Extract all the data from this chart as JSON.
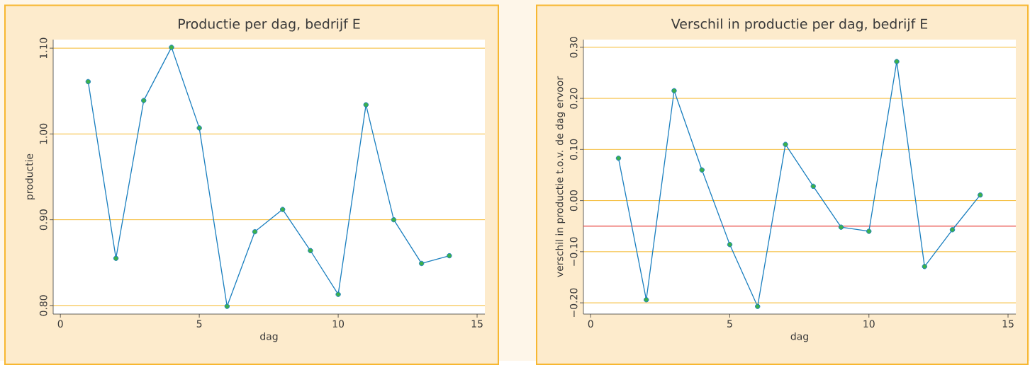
{
  "chart_data": [
    {
      "type": "line",
      "title": "Productie per dag, bedrijf E",
      "xlabel": "dag",
      "ylabel": "productie",
      "x": [
        1,
        2,
        3,
        4,
        5,
        6,
        7,
        8,
        9,
        10,
        11,
        12,
        13,
        14
      ],
      "series": [
        {
          "color": "#1a7fbf",
          "values": [
            1.061,
            0.855,
            1.039,
            1.101,
            1.007,
            0.799,
            0.886,
            0.912,
            0.864,
            0.813,
            1.034,
            0.9,
            0.849,
            0.858
          ]
        }
      ],
      "xlim": [
        -0.26,
        15.28
      ],
      "ylim": [
        0.79,
        1.11
      ],
      "xticks": [
        0,
        5,
        10,
        15
      ],
      "yticks": [
        {
          "value": 0.8,
          "label": "0.80"
        },
        {
          "value": 0.9,
          "label": "0.90"
        },
        {
          "value": 1.0,
          "label": "1.00"
        },
        {
          "value": 1.1,
          "label": "1.10"
        }
      ],
      "grid": "y",
      "marker": "circle"
    },
    {
      "type": "line",
      "title": "Verschil in productie per dag, bedrijf E",
      "xlabel": "dag",
      "ylabel": "verschil in productie t.o.v. de dag ervoor",
      "x": [
        1,
        2,
        3,
        4,
        5,
        6,
        7,
        8,
        9,
        10,
        11,
        12,
        13,
        14
      ],
      "series": [
        {
          "color": "#1a7fbf",
          "values": [
            0.083,
            -0.194,
            0.215,
            0.06,
            -0.086,
            -0.207,
            0.11,
            0.028,
            -0.052,
            -0.06,
            0.272,
            -0.129,
            -0.057,
            0.011
          ]
        }
      ],
      "xlim": [
        -0.26,
        15.28
      ],
      "ylim": [
        -0.222,
        0.315
      ],
      "xticks": [
        0,
        5,
        10,
        15
      ],
      "yticks": [
        {
          "value": -0.2,
          "label": "−0.20"
        },
        {
          "value": -0.1,
          "label": "−0.10"
        },
        {
          "value": 0.0,
          "label": "0.00"
        },
        {
          "value": 0.1,
          "label": "0.10"
        },
        {
          "value": 0.2,
          "label": "0.20"
        },
        {
          "value": 0.3,
          "label": "0.30"
        }
      ],
      "ref_lines": [
        {
          "axis": "y",
          "value": -0.05,
          "color": "#e8403a"
        }
      ],
      "grid": "y",
      "marker": "circle"
    }
  ]
}
